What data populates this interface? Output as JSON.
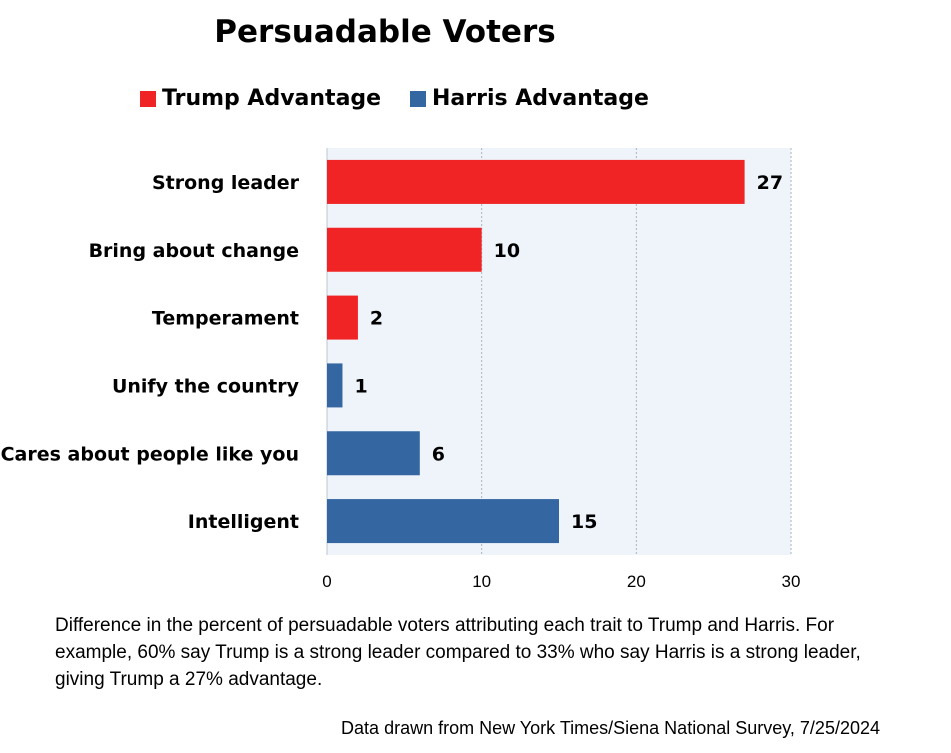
{
  "chart_data": {
    "type": "bar",
    "orientation": "horizontal",
    "title": "Persuadable Voters",
    "categories": [
      "Strong leader",
      "Bring about change",
      "Temperament",
      "Unify the country",
      "Cares about people like you",
      "Intelligent"
    ],
    "values": [
      27,
      10,
      2,
      1,
      6,
      15
    ],
    "advantage": [
      "Trump Advantage",
      "Trump Advantage",
      "Trump Advantage",
      "Harris Advantage",
      "Harris Advantage",
      "Harris Advantage"
    ],
    "series": [
      {
        "name": "Trump Advantage",
        "color": "#f02424"
      },
      {
        "name": "Harris Advantage",
        "color": "#3466a1"
      }
    ],
    "xlim": [
      0,
      30
    ],
    "xticks": [
      0,
      10,
      20,
      30
    ],
    "grid": "vertical dashed",
    "legend_position": "top",
    "plot_background": "#eef4fa"
  },
  "note": "Difference in the percent of persuadable voters attributing each trait to Trump and Harris. For example, 60% say Trump is a strong leader compared to 33% who say Harris is a strong leader, giving Trump a 27% advantage.",
  "source": "Data drawn from New York Times/Siena National Survey,  7/25/2024"
}
